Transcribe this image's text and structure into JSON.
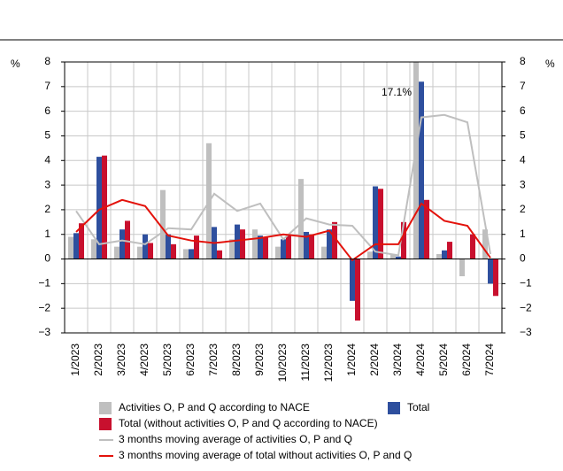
{
  "chart_data": {
    "type": "bar",
    "y_unit": "%",
    "y2_unit": "%",
    "categories": [
      "1/2023",
      "2/2023",
      "3/2023",
      "4/2023",
      "5/2023",
      "6/2023",
      "7/2023",
      "8/2023",
      "9/2023",
      "10/2023",
      "11/2023",
      "12/2023",
      "1/2024",
      "2/2024",
      "3/2024",
      "4/2024",
      "5/2024",
      "6/2024",
      "7/2024"
    ],
    "series": [
      {
        "name": "Activities O, P and Q according to NACE",
        "type": "bar",
        "color": "#bfbfbf",
        "values": [
          0.9,
          0.8,
          0.5,
          0.5,
          2.8,
          0.4,
          4.7,
          0.8,
          1.2,
          0.5,
          3.25,
          0.5,
          0,
          0.3,
          0.2,
          17.1,
          0.2,
          -0.7,
          1.2
        ],
        "value_labels": [
          null,
          null,
          null,
          null,
          null,
          null,
          null,
          null,
          null,
          null,
          null,
          null,
          null,
          null,
          null,
          "17.1%",
          null,
          null,
          null
        ]
      },
      {
        "name": "Total",
        "type": "bar",
        "color": "#2e4f9e",
        "values": [
          1.05,
          4.15,
          1.2,
          1.0,
          1.0,
          0.4,
          1.3,
          1.4,
          0.95,
          0.8,
          1.1,
          1.2,
          -1.7,
          2.95,
          0.1,
          7.2,
          0.35,
          0,
          -1.0
        ]
      },
      {
        "name": "Total (without activities O, P and Q according to NACE)",
        "type": "bar",
        "color": "#c8102e",
        "values": [
          1.45,
          4.2,
          1.55,
          0.65,
          0.6,
          0.95,
          0.35,
          1.2,
          0.9,
          1.0,
          1.0,
          1.5,
          -2.5,
          2.85,
          1.5,
          2.4,
          0.7,
          1.0,
          -1.5
        ]
      },
      {
        "name": "3 months moving average of activities O, P and Q",
        "type": "line",
        "color": "#bfbfbf",
        "values": [
          1.95,
          0.6,
          0.75,
          0.6,
          1.25,
          1.2,
          2.65,
          1.95,
          2.25,
          0.8,
          1.65,
          1.4,
          1.35,
          0.3,
          0.15,
          5.75,
          5.85,
          5.55,
          0.2
        ]
      },
      {
        "name": "3 months moving average of total without activities O, P and Q",
        "type": "line",
        "color": "#e3120b",
        "values": [
          1.1,
          2.0,
          2.4,
          2.15,
          0.95,
          0.75,
          0.65,
          0.75,
          0.85,
          1.0,
          0.9,
          1.15,
          -0.05,
          0.6,
          0.6,
          2.25,
          1.55,
          1.35,
          0.05
        ]
      }
    ],
    "ylim": [
      -3,
      8
    ],
    "yticks": [
      {
        "value": -3,
        "label": "−3"
      },
      {
        "value": -2,
        "label": "−2"
      },
      {
        "value": -1,
        "label": "−1"
      },
      0,
      1,
      2,
      3,
      4,
      5,
      6,
      7,
      8
    ],
    "y2lim": [
      -3,
      8
    ],
    "y2ticks": [
      {
        "value": -3,
        "label": "−3"
      },
      {
        "value": -2,
        "label": "−2"
      },
      {
        "value": -1,
        "label": "−1"
      },
      0,
      1,
      2,
      3,
      4,
      5,
      6,
      7,
      8
    ],
    "grid": true
  }
}
